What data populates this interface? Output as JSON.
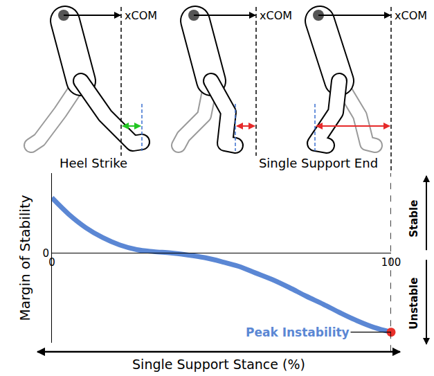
{
  "figures": [
    {
      "caption": "Heel Strike",
      "xcom_label": "xCOM",
      "stable": true
    },
    {
      "xcom_label": "xCOM",
      "stable": false
    },
    {
      "caption": "Single Support End",
      "xcom_label": "xCOM",
      "stable": false
    }
  ],
  "chart_data": {
    "type": "line",
    "x": [
      0,
      5,
      10,
      15,
      20,
      25,
      30,
      35,
      40,
      45,
      50,
      55,
      60,
      65,
      70,
      75,
      80,
      85,
      90,
      95,
      100
    ],
    "values": [
      0.83,
      0.58,
      0.38,
      0.23,
      0.12,
      0.05,
      0.02,
      0.0,
      -0.03,
      -0.07,
      -0.13,
      -0.2,
      -0.3,
      -0.4,
      -0.52,
      -0.65,
      -0.77,
      -0.9,
      -1.02,
      -1.12,
      -1.19
    ],
    "color": "#5b87d4",
    "xlim": [
      0,
      100
    ],
    "xticks": [
      0,
      100
    ],
    "ylim": [
      -1.35,
      1.2
    ],
    "yticks": [
      0
    ],
    "x_label": "Single Support Stance (%)",
    "y_label": "Margin of Stability",
    "grid": false,
    "annotations": [
      {
        "text": "Peak Instability",
        "x": 100,
        "y": -1.19,
        "color": "#e8302a"
      }
    ],
    "regions": {
      "above": "Stable",
      "below": "Unstable"
    }
  }
}
